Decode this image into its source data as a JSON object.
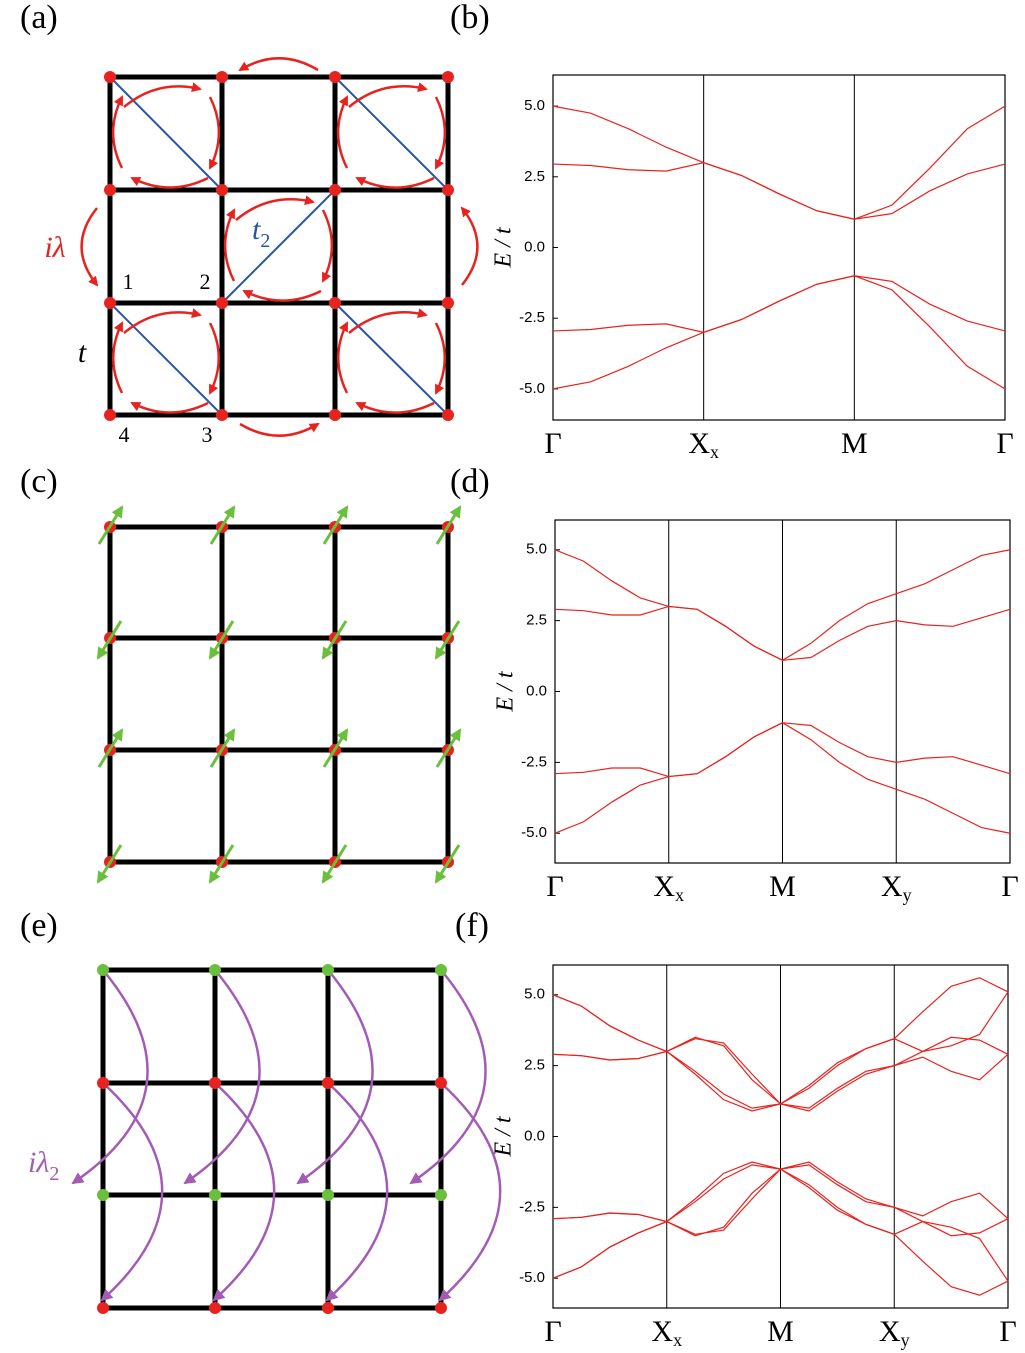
{
  "panel_labels": [
    "(a)",
    "(b)",
    "(c)",
    "(d)",
    "(e)",
    "(f)"
  ],
  "diagram_a": {
    "sites": [
      "1",
      "2",
      "3",
      "4"
    ],
    "hopping": "t",
    "soc": "iλ",
    "nnn": {
      "base": "t",
      "sub": "2"
    }
  },
  "diagram_e": {
    "soc": {
      "base": "iλ",
      "sub": "2"
    }
  },
  "chart_data": [
    {
      "type": "line",
      "y_label": "E / t",
      "x": [
        0,
        0.25,
        0.5,
        0.75,
        1,
        1.25,
        1.5,
        1.75,
        2,
        2.25,
        2.5,
        2.75,
        3
      ],
      "xlim": [
        0,
        3
      ],
      "xticks": [
        {
          "value": 0,
          "label": "Γ"
        },
        {
          "value": 1,
          "label": "X",
          "sub": "x"
        },
        {
          "value": 2,
          "label": "M"
        },
        {
          "value": 3,
          "label": "Γ"
        }
      ],
      "ylim": [
        -6.1,
        6.1
      ],
      "yticks": [
        {
          "value": 5,
          "label": "5.0"
        },
        {
          "value": 2.5,
          "label": "2.5"
        },
        {
          "value": 0,
          "label": "0.0"
        },
        {
          "value": -2.5,
          "label": "-2.5"
        },
        {
          "value": -5,
          "label": "-5.0"
        }
      ],
      "grid": "x",
      "series": [
        {
          "color": "#e8231f",
          "values": [
            5.0,
            4.75,
            4.2,
            3.55,
            3.0,
            2.55,
            1.9,
            1.3,
            1.0,
            1.5,
            2.8,
            4.2,
            5.0
          ]
        },
        {
          "color": "#e8231f",
          "values": [
            2.95,
            2.9,
            2.75,
            2.7,
            3.0,
            2.55,
            1.9,
            1.3,
            1.0,
            1.2,
            2.0,
            2.6,
            2.95
          ]
        },
        {
          "color": "#e8231f",
          "values": [
            -2.95,
            -2.9,
            -2.75,
            -2.7,
            -3.0,
            -2.55,
            -1.9,
            -1.3,
            -1.0,
            -1.2,
            -2.0,
            -2.6,
            -2.95
          ]
        },
        {
          "color": "#e8231f",
          "values": [
            -5.0,
            -4.75,
            -4.2,
            -3.55,
            -3.0,
            -2.55,
            -1.9,
            -1.3,
            -1.0,
            -1.5,
            -2.8,
            -4.2,
            -5.0
          ]
        }
      ]
    },
    {
      "type": "line",
      "y_label": "E / t",
      "x": [
        0,
        0.25,
        0.5,
        0.75,
        1,
        1.25,
        1.5,
        1.75,
        2,
        2.25,
        2.5,
        2.75,
        3,
        3.25,
        3.5,
        3.75,
        4
      ],
      "xlim": [
        0,
        4
      ],
      "xticks": [
        {
          "value": 0,
          "label": "Γ"
        },
        {
          "value": 1,
          "label": "X",
          "sub": "x"
        },
        {
          "value": 2,
          "label": "M"
        },
        {
          "value": 3,
          "label": "X",
          "sub": "y"
        },
        {
          "value": 4,
          "label": "Γ"
        }
      ],
      "ylim": [
        -6.05,
        6.05
      ],
      "yticks": [
        {
          "value": 5,
          "label": "5.0"
        },
        {
          "value": 2.5,
          "label": "2.5"
        },
        {
          "value": 0,
          "label": "0.0"
        },
        {
          "value": -2.5,
          "label": "-2.5"
        },
        {
          "value": -5,
          "label": "-5.0"
        }
      ],
      "grid": "x",
      "series": [
        {
          "color": "#e8231f",
          "values": [
            5.0,
            4.6,
            3.9,
            3.3,
            3.0,
            2.9,
            2.3,
            1.6,
            1.1,
            1.7,
            2.5,
            3.1,
            3.45,
            3.8,
            4.3,
            4.8,
            5.0
          ]
        },
        {
          "color": "#e8231f",
          "values": [
            2.9,
            2.85,
            2.7,
            2.7,
            3.0,
            2.9,
            2.3,
            1.6,
            1.1,
            1.2,
            1.8,
            2.3,
            2.5,
            2.35,
            2.3,
            2.6,
            2.9
          ]
        },
        {
          "color": "#e8231f",
          "values": [
            -2.9,
            -2.85,
            -2.7,
            -2.7,
            -3.0,
            -2.9,
            -2.3,
            -1.6,
            -1.1,
            -1.2,
            -1.8,
            -2.3,
            -2.5,
            -2.35,
            -2.3,
            -2.6,
            -2.9
          ]
        },
        {
          "color": "#e8231f",
          "values": [
            -5.0,
            -4.6,
            -3.9,
            -3.3,
            -3.0,
            -2.9,
            -2.3,
            -1.6,
            -1.1,
            -1.7,
            -2.5,
            -3.1,
            -3.45,
            -3.8,
            -4.3,
            -4.8,
            -5.0
          ]
        }
      ]
    },
    {
      "type": "line",
      "y_label": "E / t",
      "x": [
        0,
        0.25,
        0.5,
        0.75,
        1,
        1.25,
        1.5,
        1.75,
        2,
        2.25,
        2.5,
        2.75,
        3,
        3.25,
        3.5,
        3.75,
        4
      ],
      "xlim": [
        0,
        4
      ],
      "xticks": [
        {
          "value": 0,
          "label": "Γ"
        },
        {
          "value": 1,
          "label": "X",
          "sub": "x"
        },
        {
          "value": 2,
          "label": "M"
        },
        {
          "value": 3,
          "label": "X",
          "sub": "y"
        },
        {
          "value": 4,
          "label": "Γ"
        }
      ],
      "ylim": [
        -6.05,
        6.05
      ],
      "yticks": [
        {
          "value": 5,
          "label": "5.0"
        },
        {
          "value": 2.5,
          "label": "2.5"
        },
        {
          "value": 0,
          "label": "0.0"
        },
        {
          "value": -2.5,
          "label": "-2.5"
        },
        {
          "value": -5,
          "label": "-5.0"
        }
      ],
      "grid": "x",
      "series": [
        {
          "color": "#e8231f",
          "values": [
            5.0,
            4.6,
            3.9,
            3.4,
            3.0,
            3.45,
            3.3,
            2.2,
            1.15,
            1.8,
            2.6,
            3.1,
            3.45,
            4.4,
            5.3,
            5.6,
            5.1
          ]
        },
        {
          "color": "#e8231f",
          "values": [
            2.9,
            2.85,
            2.7,
            2.75,
            3.0,
            2.3,
            1.5,
            1.0,
            1.15,
            0.9,
            1.6,
            2.2,
            2.5,
            3.0,
            3.5,
            3.4,
            2.9
          ]
        },
        {
          "color": "#e8231f",
          "values": [
            2.9,
            2.85,
            2.7,
            2.75,
            3.0,
            2.2,
            1.3,
            0.9,
            1.15,
            1.0,
            1.7,
            2.3,
            2.5,
            2.8,
            2.3,
            2.0,
            2.9
          ]
        },
        {
          "color": "#e8231f",
          "values": [
            5.0,
            4.6,
            3.9,
            3.4,
            3.0,
            3.5,
            3.2,
            2.0,
            1.15,
            1.7,
            2.5,
            3.1,
            3.45,
            3.0,
            3.2,
            3.6,
            5.1
          ]
        },
        {
          "color": "#e8231f",
          "values": [
            -5.0,
            -4.6,
            -3.9,
            -3.4,
            -3.0,
            -3.45,
            -3.3,
            -2.2,
            -1.15,
            -1.8,
            -2.6,
            -3.1,
            -3.45,
            -4.4,
            -5.3,
            -5.6,
            -5.1
          ]
        },
        {
          "color": "#e8231f",
          "values": [
            -2.9,
            -2.85,
            -2.7,
            -2.75,
            -3.0,
            -2.3,
            -1.5,
            -1.0,
            -1.15,
            -0.9,
            -1.6,
            -2.2,
            -2.5,
            -3.0,
            -3.5,
            -3.4,
            -2.9
          ]
        },
        {
          "color": "#e8231f",
          "values": [
            -2.9,
            -2.85,
            -2.7,
            -2.75,
            -3.0,
            -2.2,
            -1.3,
            -0.9,
            -1.15,
            -1.0,
            -1.7,
            -2.3,
            -2.5,
            -2.8,
            -2.3,
            -2.0,
            -2.9
          ]
        },
        {
          "color": "#e8231f",
          "values": [
            -5.0,
            -4.6,
            -3.9,
            -3.4,
            -3.0,
            -3.5,
            -3.2,
            -2.0,
            -1.15,
            -1.7,
            -2.5,
            -3.1,
            -3.45,
            -3.0,
            -3.2,
            -3.6,
            -5.1
          ]
        }
      ]
    }
  ]
}
